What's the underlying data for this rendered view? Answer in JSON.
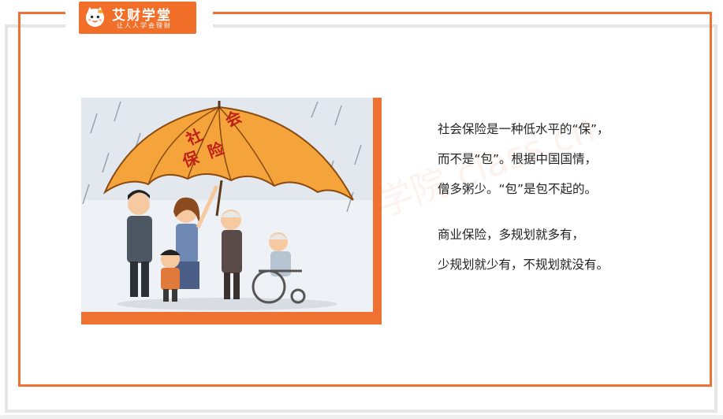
{
  "logo": {
    "title": "艾财学堂",
    "slogan": "让人人学会理财",
    "brand_color": "#f26f2a",
    "icon": "cat-mascot-icon"
  },
  "illustration": {
    "umbrella_text_top": "社     会",
    "umbrella_text_bottom": "保  险",
    "accent_color": "#f07232"
  },
  "watermark": "学院 class.cn",
  "content": {
    "lines_1": [
      "社会保险是一种低水平的“保”，",
      "而不是“包”。根据中国国情，",
      "僧多粥少。“包”是包不起的。"
    ],
    "lines_2": [
      "商业保险，多规划就多有，",
      "少规划就少有，不规划就没有。"
    ]
  },
  "frame_color": "#f07232"
}
